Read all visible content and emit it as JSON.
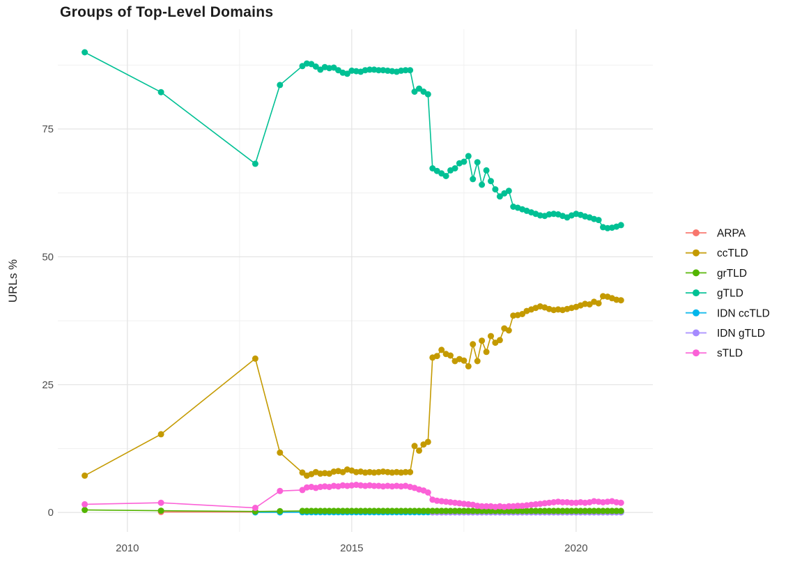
{
  "title": "Groups of Top-Level Domains",
  "x_axis": {
    "label": "",
    "tick_labels": [
      "2010",
      "2015",
      "2020"
    ],
    "tick_values": [
      2010,
      2015,
      2020
    ],
    "minor_values": [
      2012.5,
      2017.5
    ],
    "range": [
      2008.45,
      2021.71
    ]
  },
  "y_axis": {
    "label": "URLs %",
    "tick_labels": [
      "0",
      "25",
      "50",
      "75"
    ],
    "tick_values": [
      0,
      25,
      50,
      75
    ],
    "minor_values": [
      12.5,
      37.5,
      62.5,
      87.5
    ],
    "range": [
      -3.8,
      94.5
    ]
  },
  "legend": {
    "position": "right"
  },
  "style": {
    "grid_major_color": "#e4e4e4",
    "grid_minor_color": "#f0f0f0",
    "tick_text_color": "#4d4d4d",
    "legend_text_color": "#111111",
    "axis_title_color": "#262626"
  },
  "chart_data": {
    "type": "line",
    "title": "Groups of Top-Level Domains",
    "xlabel": "",
    "ylabel": "URLs %",
    "xlim": [
      2008.45,
      2021.71
    ],
    "ylim": [
      -3.8,
      94.5
    ],
    "grid": true,
    "legend_position": "right",
    "dense_x": [
      2013.9,
      2014.0,
      2014.1,
      2014.2,
      2014.3,
      2014.4,
      2014.5,
      2014.6,
      2014.7,
      2014.8,
      2014.9,
      2015.0,
      2015.1,
      2015.2,
      2015.3,
      2015.4,
      2015.5,
      2015.6,
      2015.7,
      2015.8,
      2015.9,
      2016.0,
      2016.1,
      2016.2,
      2016.3,
      2016.4,
      2016.5,
      2016.6,
      2016.7,
      2016.8,
      2016.9,
      2017.0,
      2017.1,
      2017.2,
      2017.3,
      2017.4,
      2017.5,
      2017.6,
      2017.7,
      2017.8,
      2017.9,
      2018.0,
      2018.1,
      2018.2,
      2018.3,
      2018.4,
      2018.5,
      2018.6,
      2018.7,
      2018.8,
      2018.9,
      2019.0,
      2019.1,
      2019.2,
      2019.3,
      2019.4,
      2019.5,
      2019.6,
      2019.7,
      2019.8,
      2019.9,
      2020.0,
      2020.1,
      2020.2,
      2020.3,
      2020.4,
      2020.5,
      2020.6,
      2020.7,
      2020.8,
      2020.9,
      2021.0
    ],
    "series": [
      {
        "name": "ARPA",
        "color": "#F8766D",
        "z": 0,
        "pre": [
          [
            2010.75,
            0.1
          ],
          [
            2012.85,
            0.1
          ],
          [
            2013.4,
            0.1
          ]
        ],
        "dense_from": 0,
        "dense_const": 0.08
      },
      {
        "name": "ccTLD",
        "color": "#C49A00",
        "z": 3,
        "pre": [
          [
            2009.05,
            7.2
          ],
          [
            2010.75,
            15.3
          ],
          [
            2012.85,
            30.1
          ],
          [
            2013.4,
            11.7
          ]
        ],
        "dense_from": 0,
        "dense_y": [
          7.8,
          7.2,
          7.5,
          7.9,
          7.6,
          7.7,
          7.6,
          8.0,
          8.1,
          7.9,
          8.4,
          8.2,
          7.9,
          8.0,
          7.8,
          7.9,
          7.8,
          7.9,
          8.0,
          7.9,
          7.8,
          7.9,
          7.8,
          7.9,
          7.9,
          13.0,
          12.1,
          13.3,
          13.8,
          30.3,
          30.6,
          31.8,
          31.0,
          30.7,
          29.6,
          30.0,
          29.7,
          28.6,
          32.9,
          29.6,
          33.6,
          31.4,
          34.5,
          33.2,
          33.7,
          36.0,
          35.6,
          38.5,
          38.6,
          38.8,
          39.4,
          39.7,
          40.0,
          40.3,
          40.1,
          39.8,
          39.6,
          39.7,
          39.6,
          39.8,
          40.0,
          40.2,
          40.5,
          40.8,
          40.7,
          41.2,
          40.9,
          42.3,
          42.2,
          41.9,
          41.6,
          41.5
        ]
      },
      {
        "name": "grTLD",
        "color": "#53B400",
        "z": 5,
        "pre": [
          [
            2009.05,
            0.5
          ],
          [
            2010.75,
            0.35
          ],
          [
            2012.85,
            0.2
          ],
          [
            2013.4,
            0.25
          ]
        ],
        "dense_from": 0,
        "dense_const": 0.3
      },
      {
        "name": "gTLD",
        "color": "#00C094",
        "z": 4,
        "pre": [
          [
            2009.05,
            90.0
          ],
          [
            2010.75,
            82.2
          ],
          [
            2012.85,
            68.2
          ],
          [
            2013.4,
            83.6
          ]
        ],
        "dense_from": 0,
        "dense_y": [
          87.3,
          87.8,
          87.7,
          87.2,
          86.6,
          87.1,
          86.9,
          87.0,
          86.5,
          86.0,
          85.8,
          86.4,
          86.3,
          86.2,
          86.5,
          86.6,
          86.6,
          86.5,
          86.5,
          86.4,
          86.3,
          86.2,
          86.4,
          86.5,
          86.5,
          82.3,
          82.9,
          82.3,
          81.8,
          67.3,
          66.8,
          66.3,
          65.8,
          66.9,
          67.3,
          68.3,
          68.6,
          69.7,
          65.2,
          68.5,
          64.1,
          66.9,
          64.8,
          63.2,
          61.8,
          62.4,
          62.9,
          59.8,
          59.6,
          59.3,
          59.0,
          58.7,
          58.4,
          58.1,
          58.0,
          58.3,
          58.4,
          58.3,
          58.0,
          57.7,
          58.1,
          58.4,
          58.2,
          57.9,
          57.7,
          57.4,
          57.2,
          55.8,
          55.6,
          55.7,
          55.9,
          56.2
        ]
      },
      {
        "name": "IDN ccTLD",
        "color": "#00B6EB",
        "z": 1,
        "pre": [
          [
            2012.85,
            0.02
          ],
          [
            2013.4,
            0.02
          ]
        ],
        "dense_from": 0,
        "dense_const": 0.05
      },
      {
        "name": "IDN gTLD",
        "color": "#A58AFF",
        "z": 2,
        "pre": [],
        "dense_from": 29,
        "dense_const": 0.02
      },
      {
        "name": "sTLD",
        "color": "#FB61D7",
        "z": 6,
        "pre": [
          [
            2009.05,
            1.6
          ],
          [
            2010.75,
            1.9
          ],
          [
            2012.85,
            0.9
          ],
          [
            2013.4,
            4.2
          ]
        ],
        "dense_from": 0,
        "dense_y": [
          4.4,
          4.9,
          5.0,
          4.8,
          5.0,
          5.1,
          5.0,
          5.2,
          5.1,
          5.3,
          5.2,
          5.3,
          5.4,
          5.3,
          5.2,
          5.3,
          5.2,
          5.2,
          5.1,
          5.2,
          5.1,
          5.2,
          5.1,
          5.2,
          5.0,
          4.8,
          4.5,
          4.3,
          3.9,
          2.5,
          2.3,
          2.2,
          2.1,
          2.0,
          1.9,
          1.8,
          1.7,
          1.6,
          1.5,
          1.3,
          1.2,
          1.2,
          1.2,
          1.1,
          1.2,
          1.1,
          1.2,
          1.2,
          1.3,
          1.3,
          1.4,
          1.5,
          1.6,
          1.7,
          1.8,
          1.9,
          2.0,
          2.1,
          2.0,
          2.0,
          1.9,
          1.9,
          2.0,
          1.9,
          2.0,
          2.2,
          2.1,
          2.0,
          2.1,
          2.2,
          2.0,
          1.9
        ]
      }
    ]
  }
}
